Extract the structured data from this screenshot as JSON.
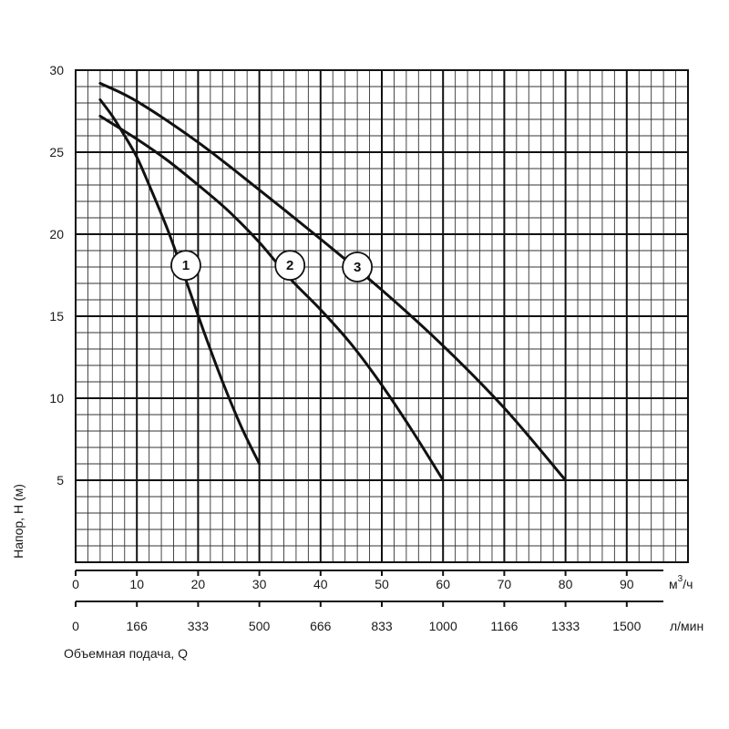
{
  "chart_data": {
    "type": "line",
    "title": "",
    "ylabel": "Напор, H (м)",
    "xlabel": "Объемная подача, Q",
    "ylim": [
      0,
      30
    ],
    "xlim": [
      0,
      100
    ],
    "grid": true,
    "y_ticks": [
      "5",
      "10",
      "15",
      "20",
      "25",
      "30"
    ],
    "x_axis_primary": {
      "unit_base": "м",
      "unit_sup": "3",
      "unit_tail": "/ч",
      "ticks": [
        {
          "v": 0,
          "label": "0"
        },
        {
          "v": 10,
          "label": "10"
        },
        {
          "v": 20,
          "label": "20"
        },
        {
          "v": 30,
          "label": "30"
        },
        {
          "v": 40,
          "label": "40"
        },
        {
          "v": 50,
          "label": "50"
        },
        {
          "v": 60,
          "label": "60"
        },
        {
          "v": 70,
          "label": "70"
        },
        {
          "v": 80,
          "label": "80"
        },
        {
          "v": 90,
          "label": "90"
        }
      ]
    },
    "x_axis_secondary": {
      "unit": "л/мин",
      "ticks": [
        {
          "v": 0,
          "label": "0"
        },
        {
          "v": 10,
          "label": "166"
        },
        {
          "v": 20,
          "label": "333"
        },
        {
          "v": 30,
          "label": "500"
        },
        {
          "v": 40,
          "label": "666"
        },
        {
          "v": 50,
          "label": "833"
        },
        {
          "v": 60,
          "label": "1000"
        },
        {
          "v": 70,
          "label": "1166"
        },
        {
          "v": 80,
          "label": "1333"
        },
        {
          "v": 90,
          "label": "1500"
        }
      ]
    },
    "series": [
      {
        "name": "1",
        "x": [
          4,
          6,
          8,
          10,
          12,
          15,
          18,
          21,
          24,
          27,
          30
        ],
        "y": [
          28.2,
          27.2,
          26.0,
          24.7,
          23.0,
          20.3,
          17.2,
          14.0,
          11.0,
          8.3,
          6.0
        ],
        "label_at": [
          18,
          18.1
        ]
      },
      {
        "name": "2",
        "x": [
          4,
          10,
          15,
          20,
          25,
          30,
          35,
          40,
          45,
          50,
          55,
          60
        ],
        "y": [
          27.2,
          25.8,
          24.5,
          23.0,
          21.4,
          19.5,
          17.3,
          15.4,
          13.3,
          10.8,
          8.0,
          5.0
        ],
        "label_at": [
          35,
          18.1
        ]
      },
      {
        "name": "3",
        "x": [
          4,
          10,
          20,
          30,
          40,
          50,
          60,
          70,
          80
        ],
        "y": [
          29.2,
          28.1,
          25.6,
          22.7,
          19.7,
          16.6,
          13.2,
          9.4,
          5.0
        ],
        "label_at": [
          46,
          18.0
        ]
      }
    ]
  }
}
